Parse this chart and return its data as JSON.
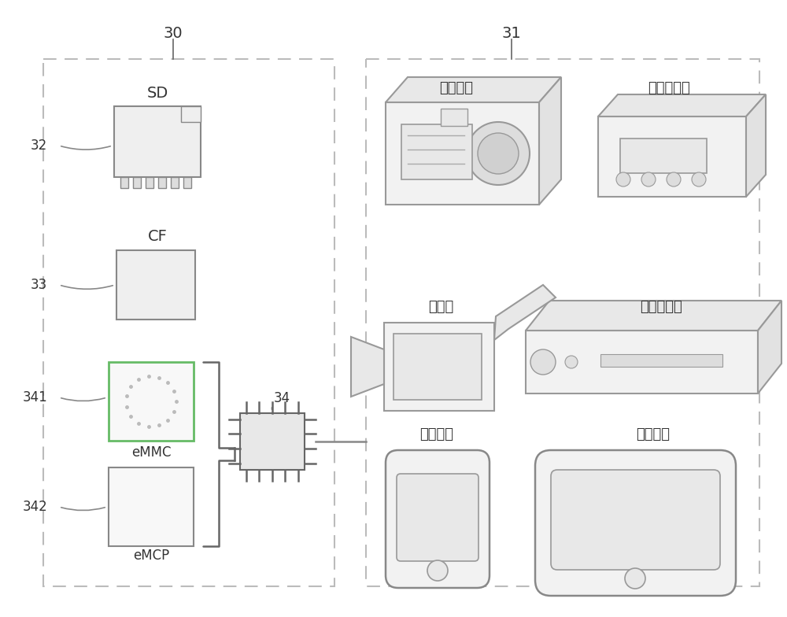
{
  "bg_color": "#ffffff",
  "lc": "#bbbbbb",
  "dc": "#666666",
  "mc": "#999999",
  "label30": "30",
  "label31": "31",
  "label32": "32",
  "label33": "33",
  "label34": "34",
  "label341": "341",
  "label342": "342",
  "text_SD": "SD",
  "text_CF": "CF",
  "text_eMMC": "eMMC",
  "text_eMCP": "eMCP",
  "text_digital_camera": "数码相机",
  "text_audio_player": "音频播放器",
  "text_camcorder": "摄像机",
  "text_video_player": "视频播放器",
  "text_comm_device": "通信装置",
  "text_tablet": "平板电脑"
}
